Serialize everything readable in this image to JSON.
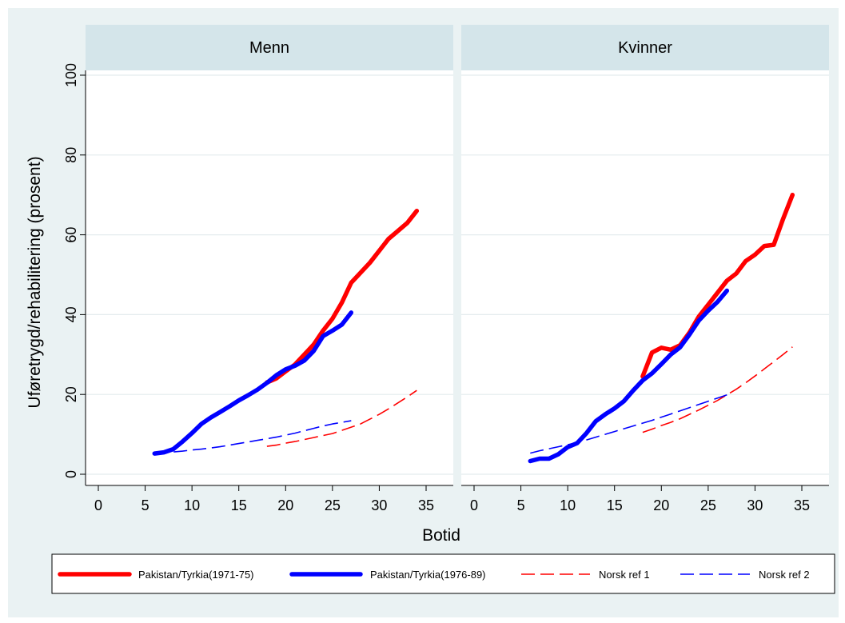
{
  "chart_data": {
    "type": "line",
    "ylabel": "Uføretrygd/rehabilitering (prosent)",
    "xlabel": "Botid",
    "xlim": [
      0,
      35
    ],
    "ylim": [
      0,
      100
    ],
    "xticks": [
      "0",
      "5",
      "10",
      "15",
      "20",
      "25",
      "30",
      "35"
    ],
    "yticks": [
      "0",
      "20",
      "40",
      "60",
      "80",
      "100"
    ],
    "grid": true,
    "legend_position": "bottom",
    "series_styles": {
      "Pakistan/Tyrkia(1971-75)": {
        "color": "#ff0000",
        "dash": "solid",
        "width": "thick"
      },
      "Pakistan/Tyrkia(1976-89)": {
        "color": "#0000ff",
        "dash": "solid",
        "width": "thick"
      },
      "Norsk ref 1": {
        "color": "#ff0000",
        "dash": "long-dash",
        "width": "thin"
      },
      "Norsk ref 2": {
        "color": "#0000ff",
        "dash": "long-dash",
        "width": "thin"
      }
    },
    "legend": [
      "Pakistan/Tyrkia(1971-75)",
      "Pakistan/Tyrkia(1976-89)",
      "Norsk ref 1",
      "Norsk ref 2"
    ],
    "panels": [
      {
        "title": "Menn",
        "series": [
          {
            "name": "Pakistan/Tyrkia(1971-75)",
            "x": [
              18,
              19,
              20,
              21,
              22,
              23,
              24,
              25,
              26,
              27,
              28,
              29,
              30,
              31,
              32,
              33,
              34
            ],
            "y": [
              23,
              24,
              25.8,
              27.5,
              30,
              32.5,
              36,
              39,
              43,
              48,
              50.5,
              53,
              56,
              59,
              61,
              63,
              66
            ]
          },
          {
            "name": "Pakistan/Tyrkia(1976-89)",
            "x": [
              6,
              7,
              8,
              9,
              10,
              11,
              12,
              13,
              14,
              15,
              16,
              17,
              18,
              19,
              20,
              21,
              22,
              23,
              24,
              25,
              26,
              27
            ],
            "y": [
              5.2,
              5.5,
              6.3,
              8.2,
              10.3,
              12.6,
              14.2,
              15.6,
              17,
              18.5,
              19.8,
              21.2,
              22.9,
              24.8,
              26.3,
              27.2,
              28.5,
              30.9,
              34.6,
              36,
              37.5,
              40.5
            ]
          },
          {
            "name": "Norsk ref 1",
            "x": [
              18,
              19,
              20,
              21,
              22,
              23,
              24,
              25,
              26,
              27,
              28,
              29,
              30,
              31,
              32,
              33,
              34
            ],
            "y": [
              7,
              7.3,
              7.8,
              8.2,
              8.7,
              9.2,
              9.7,
              10.2,
              11,
              11.8,
              12.6,
              13.8,
              15,
              16.4,
              17.9,
              19.4,
              21
            ]
          },
          {
            "name": "Norsk ref 2",
            "x": [
              6,
              7,
              8,
              9,
              10,
              11,
              12,
              13,
              14,
              15,
              16,
              17,
              18,
              19,
              20,
              21,
              22,
              23,
              24,
              25,
              26,
              27
            ],
            "y": [
              5.2,
              5.4,
              5.6,
              5.8,
              6.1,
              6.3,
              6.6,
              6.9,
              7.3,
              7.7,
              8.1,
              8.5,
              8.9,
              9.3,
              9.8,
              10.3,
              10.9,
              11.5,
              12.1,
              12.6,
              13,
              13.4
            ]
          }
        ]
      },
      {
        "title": "Kvinner",
        "series": [
          {
            "name": "Pakistan/Tyrkia(1971-75)",
            "x": [
              18,
              19,
              20,
              21,
              22,
              23,
              24,
              25,
              26,
              27,
              28,
              29,
              30,
              31,
              32,
              33,
              34
            ],
            "y": [
              24.5,
              30.5,
              31.7,
              31.2,
              32.3,
              35.5,
              39.5,
              42.5,
              45.5,
              48.5,
              50.3,
              53.4,
              55,
              57.2,
              57.5,
              64,
              70
            ]
          },
          {
            "name": "Pakistan/Tyrkia(1976-89)",
            "x": [
              6,
              7,
              8,
              9,
              10,
              11,
              12,
              13,
              14,
              15,
              16,
              17,
              18,
              19,
              20,
              21,
              22,
              23,
              24,
              25,
              26,
              27
            ],
            "y": [
              3.3,
              3.9,
              3.9,
              5,
              6.8,
              7.8,
              10.3,
              13.3,
              15,
              16.5,
              18.3,
              21,
              23.5,
              25.3,
              27.6,
              30,
              31.8,
              35,
              38.5,
              41,
              43.2,
              46
            ]
          },
          {
            "name": "Norsk ref 1",
            "x": [
              18,
              19,
              20,
              21,
              22,
              23,
              24,
              25,
              26,
              27,
              28,
              29,
              30,
              31,
              32,
              33,
              34
            ],
            "y": [
              10.5,
              11.3,
              12.2,
              13,
              13.9,
              15,
              16.1,
              17.3,
              18.5,
              19.9,
              21.3,
              22.9,
              24.6,
              26.4,
              28.2,
              30,
              31.9
            ]
          },
          {
            "name": "Norsk ref 2",
            "x": [
              6,
              7,
              8,
              9,
              10,
              11,
              12,
              13,
              14,
              15,
              16,
              17,
              18,
              19,
              20,
              21,
              22,
              23,
              24,
              25,
              26,
              27
            ],
            "y": [
              5.3,
              5.9,
              6.4,
              6.9,
              7.4,
              8,
              8.6,
              9.3,
              10,
              10.7,
              11.4,
              12.1,
              12.8,
              13.5,
              14.3,
              15.1,
              15.9,
              16.7,
              17.5,
              18.3,
              19.1,
              19.9
            ]
          }
        ]
      }
    ]
  }
}
